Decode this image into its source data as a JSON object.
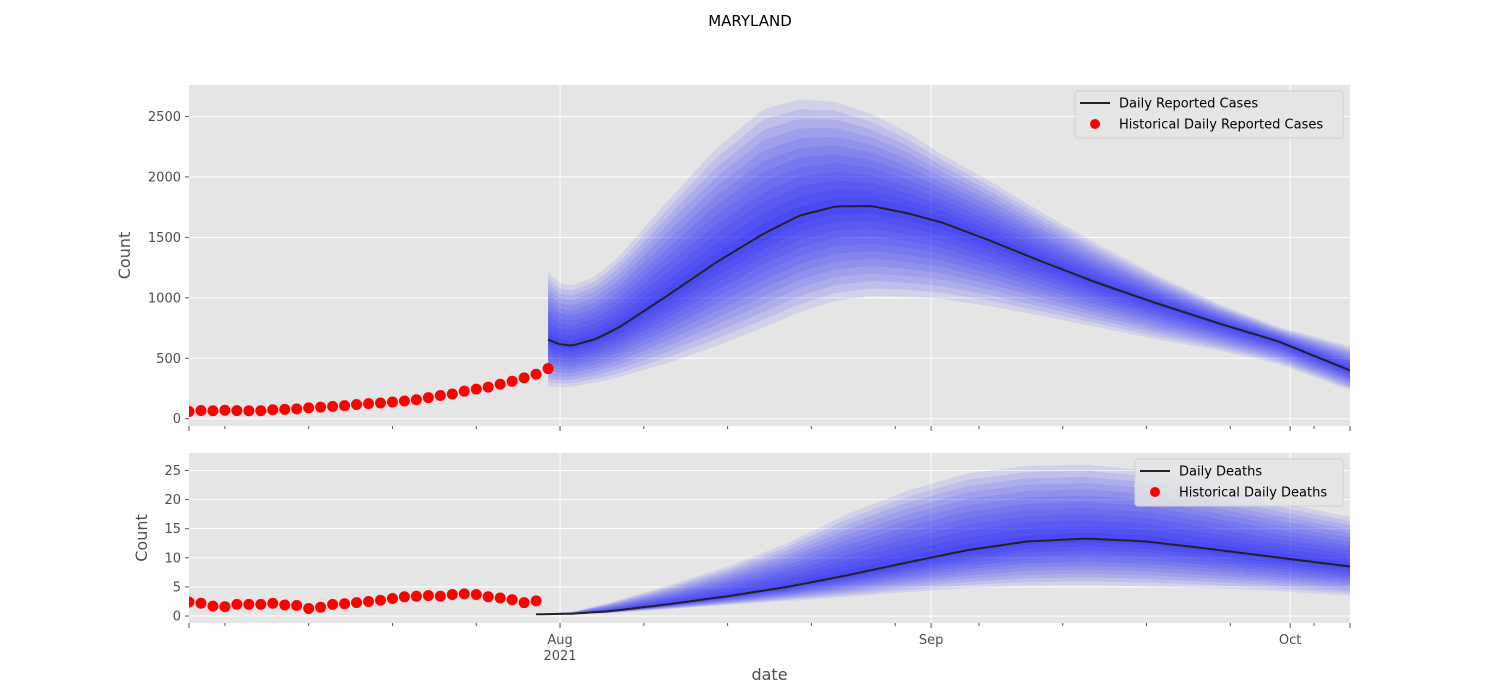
{
  "figure": {
    "suptitle": "MARYLAND",
    "background": "#ffffff",
    "axes_facecolor": "#e5e5e5",
    "grid_color": "#ffffff"
  },
  "chart_data": [
    {
      "type": "line",
      "ylabel": "Count",
      "xlabel": "",
      "xlim": [
        "2021-07-01",
        "2021-10-06"
      ],
      "ylim": [
        -60,
        2760
      ],
      "yticks": [
        0,
        500,
        1000,
        1500,
        2000,
        2500
      ],
      "grid": true,
      "legend": {
        "position": "upper right",
        "entries": [
          {
            "label": "Daily Reported Cases",
            "marker": "line",
            "color": "#222222"
          },
          {
            "label": "Historical Daily Reported Cases",
            "marker": "dot",
            "color": "#ff0000"
          }
        ]
      },
      "historical": {
        "name": "Historical Daily Reported Cases",
        "color": "#ff0000",
        "x_start": "2021-07-01",
        "values": [
          60,
          68,
          66,
          70,
          67,
          66,
          66,
          74,
          78,
          82,
          90,
          96,
          102,
          108,
          118,
          125,
          130,
          138,
          147,
          157,
          175,
          192,
          205,
          228,
          245,
          262,
          285,
          310,
          338,
          368,
          415
        ]
      },
      "forecast": {
        "name": "Daily Reported Cases",
        "line_color": "#222222",
        "band_color": "#0000ff",
        "x": [
          "2021-07-31",
          "2021-08-01",
          "2021-08-02",
          "2021-08-04",
          "2021-08-06",
          "2021-08-10",
          "2021-08-14",
          "2021-08-18",
          "2021-08-21",
          "2021-08-24",
          "2021-08-27",
          "2021-08-30",
          "2021-09-02",
          "2021-09-06",
          "2021-09-10",
          "2021-09-15",
          "2021-09-20",
          "2021-09-25",
          "2021-09-30",
          "2021-10-06"
        ],
        "median": [
          655,
          615,
          605,
          660,
          760,
          1020,
          1290,
          1530,
          1680,
          1755,
          1760,
          1700,
          1620,
          1470,
          1310,
          1120,
          950,
          790,
          640,
          400
        ],
        "lower": [
          270,
          260,
          265,
          300,
          345,
          460,
          600,
          755,
          880,
          975,
          1015,
          1010,
          990,
          930,
          855,
          755,
          655,
          565,
          455,
          235
        ],
        "upper": [
          1210,
          1120,
          1100,
          1180,
          1350,
          1800,
          2230,
          2560,
          2640,
          2620,
          2520,
          2370,
          2180,
          1960,
          1720,
          1440,
          1180,
          950,
          760,
          600
        ]
      }
    },
    {
      "type": "line",
      "ylabel": "Count",
      "xlabel": "date",
      "xlim": [
        "2021-07-01",
        "2021-10-06"
      ],
      "ylim": [
        -1.2,
        28.0
      ],
      "yticks": [
        0,
        5,
        10,
        15,
        20,
        25
      ],
      "xtick_labels": [
        {
          "date": "2021-08-01",
          "text": "Aug",
          "subtext": "2021"
        },
        {
          "date": "2021-09-01",
          "text": "Sep",
          "subtext": ""
        },
        {
          "date": "2021-10-01",
          "text": "Oct",
          "subtext": ""
        }
      ],
      "grid": true,
      "legend": {
        "position": "upper right",
        "entries": [
          {
            "label": "Daily Deaths",
            "marker": "line",
            "color": "#222222"
          },
          {
            "label": "Historical Daily Deaths",
            "marker": "dot",
            "color": "#ff0000"
          }
        ]
      },
      "historical": {
        "name": "Historical Daily Deaths",
        "color": "#ff0000",
        "x_start": "2021-07-01",
        "values": [
          2.4,
          2.2,
          1.7,
          1.6,
          2.0,
          2.0,
          2.0,
          2.2,
          1.9,
          1.8,
          1.3,
          1.5,
          2.0,
          2.1,
          2.3,
          2.5,
          2.7,
          3.0,
          3.3,
          3.4,
          3.5,
          3.4,
          3.7,
          3.8,
          3.7,
          3.3,
          3.1,
          2.8,
          2.3,
          2.6
        ]
      },
      "forecast": {
        "name": "Daily Deaths",
        "line_color": "#222222",
        "band_color": "#0000ff",
        "x": [
          "2021-07-30",
          "2021-08-02",
          "2021-08-05",
          "2021-08-10",
          "2021-08-15",
          "2021-08-20",
          "2021-08-25",
          "2021-08-30",
          "2021-09-04",
          "2021-09-09",
          "2021-09-14",
          "2021-09-19",
          "2021-09-24",
          "2021-09-29",
          "2021-10-06"
        ],
        "median": [
          0.3,
          0.4,
          0.8,
          2.0,
          3.4,
          5.0,
          7.0,
          9.2,
          11.3,
          12.8,
          13.3,
          12.8,
          11.6,
          10.3,
          8.5
        ],
        "lower": [
          0.2,
          0.3,
          0.5,
          1.2,
          1.9,
          2.6,
          3.3,
          4.1,
          4.8,
          5.2,
          5.3,
          5.1,
          4.8,
          4.4,
          3.5
        ],
        "upper": [
          0.3,
          0.7,
          2.2,
          5.2,
          8.5,
          12.5,
          17.5,
          21.5,
          24.5,
          25.8,
          26.0,
          25.0,
          22.5,
          20.0,
          17.0
        ]
      }
    }
  ]
}
